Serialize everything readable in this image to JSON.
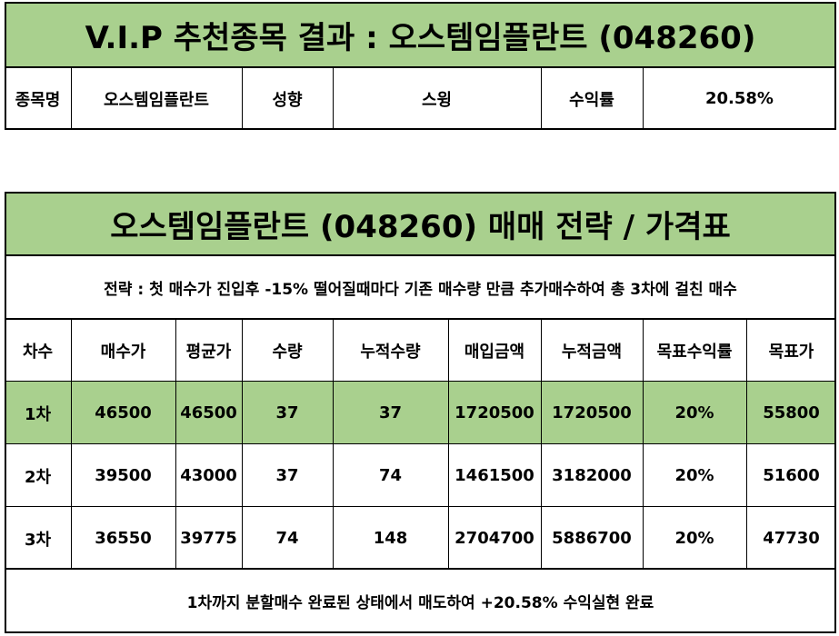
{
  "vip_result": {
    "title": "V.I.P 추천종목 결과 : 오스템임플란트 (048260)",
    "labels": {
      "stock_name": "종목명",
      "tendency": "성향",
      "return": "수익률"
    },
    "values": {
      "stock_name": "오스템임플란트",
      "tendency": "스윙",
      "return": "20.58%"
    }
  },
  "strategy": {
    "title": "오스템임플란트 (048260) 매매 전략 / 가격표",
    "description": "전략 : 첫 매수가 진입후 -15% 떨어질때마다 기존 매수량 만큼 추가매수하여 총 3차에 걸친 매수",
    "headers": [
      "차수",
      "매수가",
      "평균가",
      "수량",
      "누적수량",
      "매입금액",
      "누적금액",
      "목표수익률",
      "목표가"
    ],
    "rows": [
      [
        "1차",
        "46500",
        "46500",
        "37",
        "37",
        "1720500",
        "1720500",
        "20%",
        "55800"
      ],
      [
        "2차",
        "39500",
        "43000",
        "37",
        "74",
        "1461500",
        "3182000",
        "20%",
        "51600"
      ],
      [
        "3차",
        "36550",
        "39775",
        "74",
        "148",
        "2704700",
        "5886700",
        "20%",
        "47730"
      ]
    ],
    "highlight_row": 0,
    "footer": "1차까지 분할매수 완료된 상태에서 매도하여 +20.58% 수익실현 완료"
  },
  "colors": {
    "header_green": "#a9d08e",
    "border": "#000000"
  }
}
